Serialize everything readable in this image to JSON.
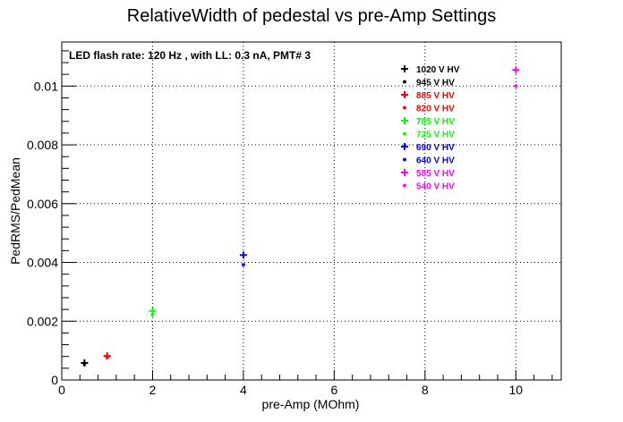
{
  "chart_data": {
    "type": "scatter",
    "title": "RelativeWidth of pedestal vs pre-Amp Settings",
    "annotation": "LED flash rate: 120 Hz , with LL: 0.3 nA, PMT# 3",
    "xlabel": "pre-Amp (MOhm)",
    "ylabel": "PedRMS/PedMean",
    "xlim": [
      0,
      11
    ],
    "ylim": [
      0,
      0.0115
    ],
    "x_ticks": [
      0,
      2,
      4,
      6,
      8,
      10
    ],
    "y_ticks": [
      0,
      0.002,
      0.004,
      0.006,
      0.008,
      0.01
    ],
    "x_tick_labels": [
      "0",
      "2",
      "4",
      "6",
      "8",
      "10"
    ],
    "y_tick_labels": [
      "0",
      "0.002",
      "0.004",
      "0.006",
      "0.008",
      "0.01"
    ],
    "grid": true,
    "legend_position": "top-right",
    "series": [
      {
        "name": "1020 V HV",
        "color": "#000000",
        "marker": "plus",
        "x": [
          0.5
        ],
        "y": [
          0.00058
        ]
      },
      {
        "name": "945 V HV",
        "color": "#000000",
        "marker": "star",
        "x": [
          0.5
        ],
        "y": [
          0.00055
        ]
      },
      {
        "name": "885 V HV",
        "color": "#ff0000",
        "marker": "plus",
        "x": [
          1.0
        ],
        "y": [
          0.00082
        ]
      },
      {
        "name": "820 V HV",
        "color": "#ff0000",
        "marker": "star",
        "x": [
          1.0
        ],
        "y": [
          0.00078
        ]
      },
      {
        "name": "785 V HV",
        "color": "#00ff00",
        "marker": "plus",
        "x": [
          2.0
        ],
        "y": [
          0.00235
        ]
      },
      {
        "name": "725 V HV",
        "color": "#00ff00",
        "marker": "star",
        "x": [
          2.0
        ],
        "y": [
          0.00222
        ]
      },
      {
        "name": "690 V HV",
        "color": "#0000ff",
        "marker": "plus",
        "x": [
          4.0
        ],
        "y": [
          0.00425
        ]
      },
      {
        "name": "640 V HV",
        "color": "#0000ff",
        "marker": "star",
        "x": [
          4.0
        ],
        "y": [
          0.00392
        ]
      },
      {
        "name": "585 V HV",
        "color": "#ff00ff",
        "marker": "plus",
        "x": [
          10.0
        ],
        "y": [
          0.01055
        ]
      },
      {
        "name": "540 V HV",
        "color": "#ff00ff",
        "marker": "star",
        "x": [
          10.0
        ],
        "y": [
          0.01
        ]
      }
    ]
  }
}
